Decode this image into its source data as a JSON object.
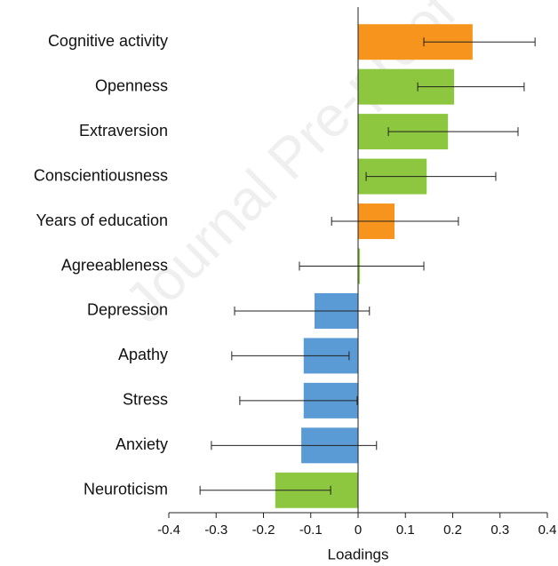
{
  "chart_data": {
    "type": "bar",
    "orientation": "horizontal",
    "watermark": "Journal Pre-proof",
    "x_label": "Loadings",
    "categories": [
      "Cognitive activity",
      "Openness",
      "Extraversion",
      "Conscientiousness",
      "Years of education",
      "Agreeableness",
      "Depression",
      "Apathy",
      "Stress",
      "Anxiety",
      "Neuroticism"
    ],
    "values": [
      0.242,
      0.203,
      0.19,
      0.145,
      0.077,
      0.004,
      -0.092,
      -0.115,
      -0.115,
      -0.12,
      -0.175
    ],
    "ci_low": [
      0.139,
      0.126,
      0.064,
      0.017,
      -0.056,
      -0.124,
      -0.261,
      -0.267,
      -0.25,
      -0.31,
      -0.334
    ],
    "ci_high": [
      0.374,
      0.351,
      0.338,
      0.291,
      0.212,
      0.139,
      0.024,
      -0.019,
      -0.002,
      0.039,
      -0.058
    ],
    "colors": [
      "#f7941d",
      "#8dc63f",
      "#8dc63f",
      "#8dc63f",
      "#f7941d",
      "#8dc63f",
      "#5b9bd5",
      "#5b9bd5",
      "#5b9bd5",
      "#5b9bd5",
      "#8dc63f"
    ],
    "xlim": [
      -0.4,
      0.4
    ],
    "xticks": [
      -0.4,
      -0.3,
      -0.2,
      -0.1,
      0,
      0.1,
      0.2,
      0.3,
      0.4
    ]
  }
}
